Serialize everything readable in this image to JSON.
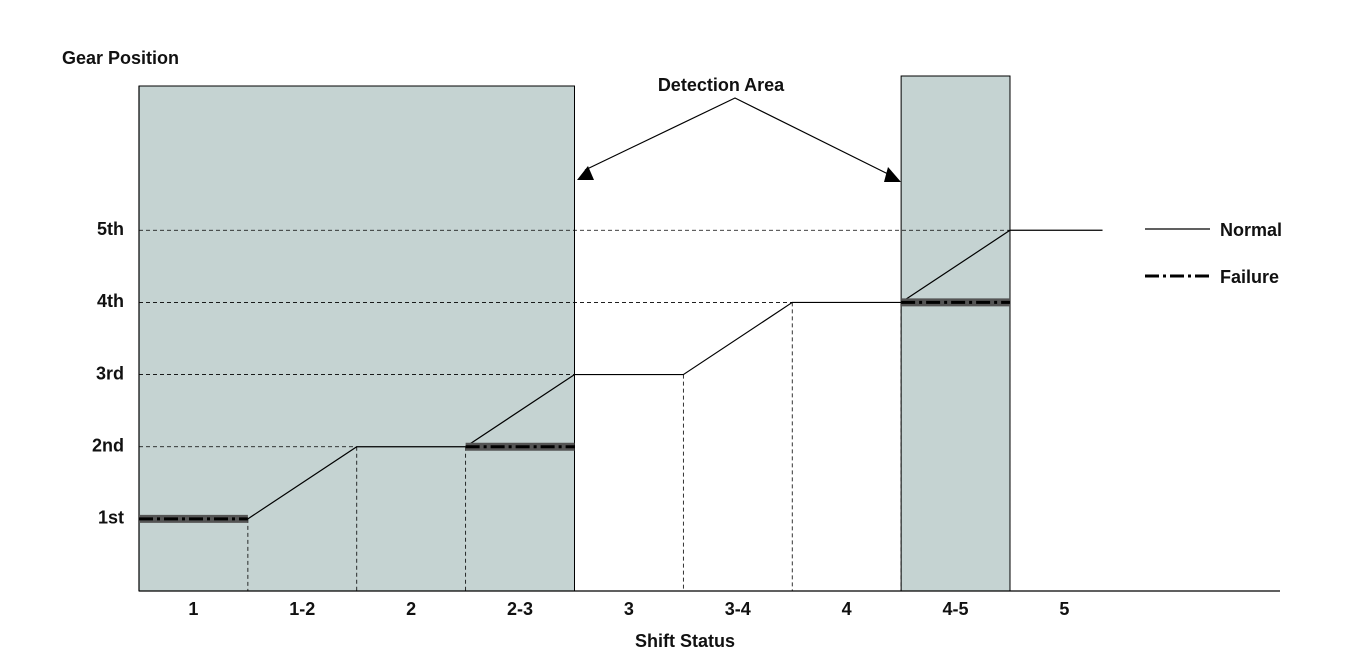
{
  "chart_data": {
    "type": "line",
    "xlabel": "Shift Status",
    "ylabel": "Gear Position",
    "annotation": "Detection Area",
    "categories": [
      "1",
      "1-2",
      "2",
      "2-3",
      "3",
      "3-4",
      "4",
      "4-5",
      "5"
    ],
    "x": [
      0,
      1,
      2,
      3,
      4,
      5,
      6,
      7,
      8,
      8.85
    ],
    "xlim": [
      0,
      10.48
    ],
    "ylim": [
      0,
      7
    ],
    "yticks": [
      {
        "value": 1,
        "label": "1st"
      },
      {
        "value": 2,
        "label": "2nd"
      },
      {
        "value": 3,
        "label": "3rd"
      },
      {
        "value": 4,
        "label": "4th"
      },
      {
        "value": 5,
        "label": "5th"
      }
    ],
    "shaded_x": [
      [
        0,
        4
      ],
      [
        7,
        8
      ]
    ],
    "shade_color": "#c5d3d2",
    "series": [
      {
        "name": "Normal",
        "color": "#000000",
        "values": [
          1,
          1,
          2,
          2,
          3,
          3,
          4,
          4,
          5,
          5
        ]
      },
      {
        "name": "Failure",
        "color": "#000000",
        "values": [
          1,
          1,
          null,
          2,
          2,
          null,
          null,
          4,
          4,
          null
        ]
      }
    ]
  }
}
